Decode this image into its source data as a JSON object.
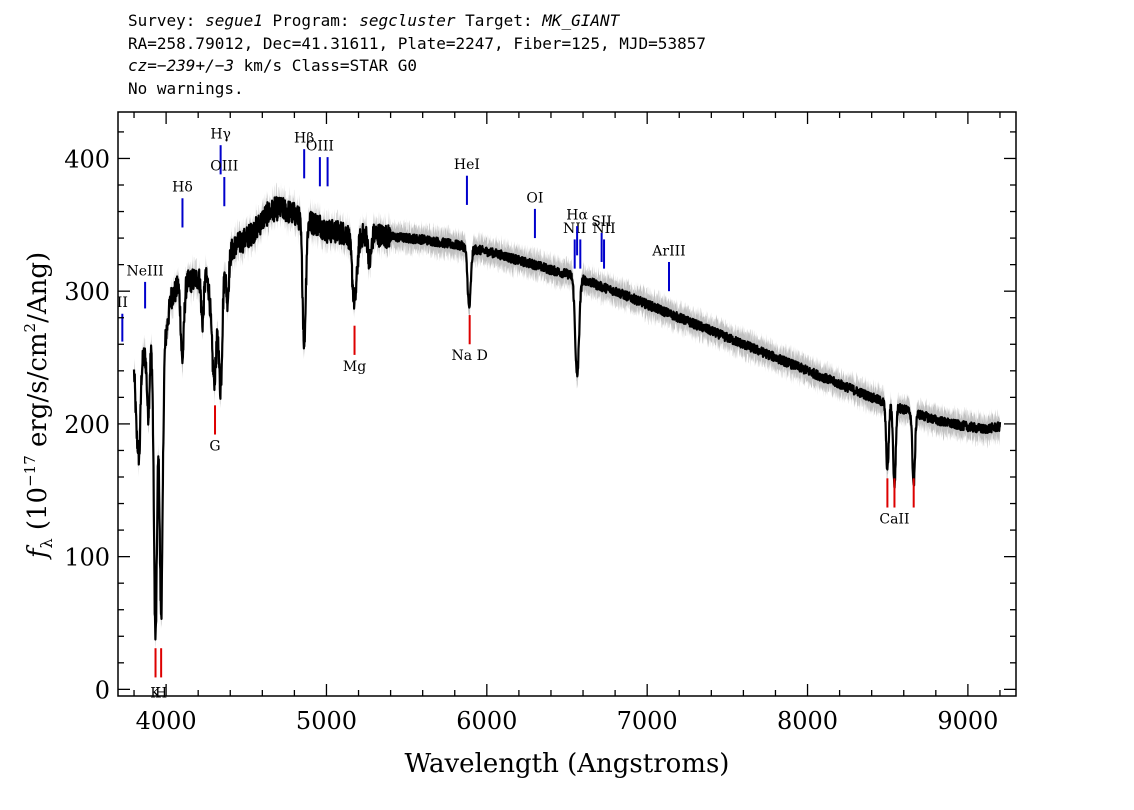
{
  "header": {
    "survey_label": "Survey: ",
    "survey": "segue1",
    "program_label": " Program: ",
    "program": "segcluster",
    "target_label": " Target: ",
    "target": "MK_GIANT",
    "line2": "RA=258.79012, Dec=41.31611, Plate=2247, Fiber=125, MJD=53857",
    "cz_label": "cz",
    "cz_eq": "=",
    "cz_value": "−239+/−3",
    "cz_rest": " km/s Class=STAR G0",
    "line4": "No warnings."
  },
  "chart_data": {
    "type": "line",
    "xlabel": "Wavelength (Angstroms)",
    "ylabel_prefix": "f",
    "ylabel_sub": "λ",
    "ylabel_open": " (10",
    "ylabel_exp1": "−17",
    "ylabel_mid": " erg/s/cm",
    "ylabel_exp2": "2",
    "ylabel_close": "/Ang)",
    "xlim": [
      3700,
      9300
    ],
    "ylim": [
      -5,
      435
    ],
    "xticks": [
      4000,
      5000,
      6000,
      7000,
      8000,
      9000
    ],
    "yticks": [
      0,
      100,
      200,
      300,
      400
    ],
    "grid": false,
    "colors": {
      "spectrum": "#000000",
      "error_band": "#c0c0c0",
      "emission": "#0000cc",
      "absorption": "#dd0000"
    },
    "continuum": [
      [
        3800,
        245
      ],
      [
        3830,
        235
      ],
      [
        3860,
        250
      ],
      [
        3880,
        255
      ],
      [
        3900,
        262
      ],
      [
        3940,
        265
      ],
      [
        3970,
        268
      ],
      [
        4000,
        268
      ],
      [
        4030,
        295
      ],
      [
        4060,
        300
      ],
      [
        4090,
        310
      ],
      [
        4120,
        306
      ],
      [
        4160,
        308
      ],
      [
        4200,
        310
      ],
      [
        4240,
        312
      ],
      [
        4280,
        303
      ],
      [
        4330,
        305
      ],
      [
        4380,
        323
      ],
      [
        4420,
        333
      ],
      [
        4480,
        338
      ],
      [
        4530,
        343
      ],
      [
        4580,
        350
      ],
      [
        4620,
        357
      ],
      [
        4680,
        362
      ],
      [
        4720,
        362
      ],
      [
        4760,
        360
      ],
      [
        4800,
        358
      ],
      [
        4860,
        352
      ],
      [
        4900,
        352
      ],
      [
        4960,
        350
      ],
      [
        5000,
        345
      ],
      [
        5050,
        345
      ],
      [
        5100,
        344
      ],
      [
        5150,
        343
      ],
      [
        5200,
        342
      ],
      [
        5300,
        343
      ],
      [
        5400,
        341
      ],
      [
        5500,
        340
      ],
      [
        5600,
        339
      ],
      [
        5700,
        337
      ],
      [
        5800,
        335
      ],
      [
        5850,
        334
      ],
      [
        5900,
        332
      ],
      [
        6000,
        330
      ],
      [
        6100,
        327
      ],
      [
        6200,
        323
      ],
      [
        6300,
        320
      ],
      [
        6400,
        316
      ],
      [
        6500,
        313
      ],
      [
        6600,
        309
      ],
      [
        6700,
        304
      ],
      [
        6800,
        300
      ],
      [
        6900,
        295
      ],
      [
        7000,
        290
      ],
      [
        7100,
        285
      ],
      [
        7200,
        280
      ],
      [
        7300,
        275
      ],
      [
        7400,
        270
      ],
      [
        7500,
        265
      ],
      [
        7600,
        260
      ],
      [
        7700,
        255
      ],
      [
        7800,
        250
      ],
      [
        7900,
        245
      ],
      [
        8000,
        240
      ],
      [
        8100,
        235
      ],
      [
        8200,
        230
      ],
      [
        8300,
        225
      ],
      [
        8400,
        220
      ],
      [
        8500,
        215
      ],
      [
        8600,
        211
      ],
      [
        8700,
        207
      ],
      [
        8800,
        203
      ],
      [
        8900,
        200
      ],
      [
        9000,
        198
      ],
      [
        9100,
        196
      ],
      [
        9200,
        198
      ]
    ],
    "absorption_features": [
      [
        3820,
        10,
        50
      ],
      [
        3835,
        6,
        40
      ],
      [
        3889,
        8,
        50
      ],
      [
        3934,
        10,
        225
      ],
      [
        3969,
        10,
        210
      ],
      [
        4101,
        10,
        60
      ],
      [
        4227,
        8,
        35
      ],
      [
        4300,
        15,
        70
      ],
      [
        4340,
        10,
        80
      ],
      [
        4383,
        8,
        30
      ],
      [
        4861,
        10,
        90
      ],
      [
        5175,
        15,
        50
      ],
      [
        5270,
        10,
        20
      ],
      [
        5890,
        10,
        45
      ],
      [
        6563,
        12,
        75
      ],
      [
        8498,
        8,
        50
      ],
      [
        8542,
        8,
        60
      ],
      [
        8662,
        8,
        55
      ]
    ],
    "emission_lines": [
      {
        "label": "II",
        "x": 3727,
        "y_bottom": 262,
        "y_top": 283,
        "label_y": 288
      },
      {
        "label": "NeIII",
        "x": 3869,
        "y_bottom": 287,
        "y_top": 307,
        "label_y": 312
      },
      {
        "label": "Hδ",
        "x": 4102,
        "y_bottom": 348,
        "y_top": 370,
        "label_y": 375
      },
      {
        "label": "Hγ",
        "x": 4340,
        "y_bottom": 388,
        "y_top": 410,
        "label_y": 415
      },
      {
        "label": "OIII",
        "x": 4363,
        "y_bottom": 364,
        "y_top": 386,
        "label_y": 391
      },
      {
        "label": "Hβ",
        "x": 4861,
        "y_bottom": 385,
        "y_top": 407,
        "label_y": 412
      },
      {
        "label": "OIII",
        "x": 4959,
        "y_bottom": 379,
        "y_top": 401,
        "label_y": 406
      },
      {
        "label": "",
        "x": 5007,
        "y_bottom": 379,
        "y_top": 401,
        "label_y": 0
      },
      {
        "label": "HeI",
        "x": 5876,
        "y_bottom": 365,
        "y_top": 387,
        "label_y": 392
      },
      {
        "label": "OI",
        "x": 6300,
        "y_bottom": 340,
        "y_top": 362,
        "label_y": 367
      },
      {
        "label": "NII",
        "x": 6548,
        "y_bottom": 317,
        "y_top": 339,
        "label_y": 344
      },
      {
        "label": "Hα",
        "x": 6563,
        "y_bottom": 327,
        "y_top": 349,
        "label_y": 354
      },
      {
        "label": "",
        "x": 6583,
        "y_bottom": 317,
        "y_top": 339,
        "label_y": 0
      },
      {
        "label": "SII",
        "x": 6716,
        "y_bottom": 322,
        "y_top": 344,
        "label_y": 349
      },
      {
        "label": "NII",
        "x": 6731,
        "y_bottom": 317,
        "y_top": 339,
        "label_y": 344
      },
      {
        "label": "ArIII",
        "x": 7136,
        "y_bottom": 300,
        "y_top": 322,
        "label_y": 327
      }
    ],
    "absorption_lines": [
      {
        "label": "K",
        "x": 3934,
        "y_bottom": 9,
        "y_top": 31,
        "label_y": -6
      },
      {
        "label": "H",
        "x": 3969,
        "y_bottom": 9,
        "y_top": 31,
        "label_y": -6
      },
      {
        "label": "G",
        "x": 4305,
        "y_bottom": 192,
        "y_top": 214,
        "label_y": 180
      },
      {
        "label": "Mg",
        "x": 5175,
        "y_bottom": 252,
        "y_top": 274,
        "label_y": 240
      },
      {
        "label": "",
        "x": 5893,
        "y_bottom": 260,
        "y_top": 282,
        "label_y": 0
      },
      {
        "label": "Na  D",
        "x": 5893,
        "y_bottom": 260,
        "y_top": 260,
        "label_y": 248
      },
      {
        "label": "",
        "x": 8498,
        "y_bottom": 137,
        "y_top": 159,
        "label_y": 0
      },
      {
        "label": "CaII",
        "x": 8542,
        "y_bottom": 137,
        "y_top": 159,
        "label_y": 125
      },
      {
        "label": "",
        "x": 8662,
        "y_bottom": 137,
        "y_top": 159,
        "label_y": 0
      }
    ]
  }
}
